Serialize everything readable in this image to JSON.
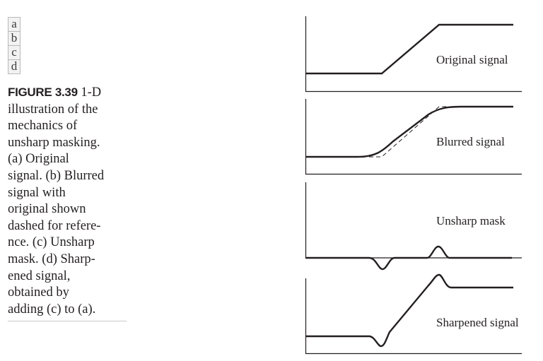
{
  "figure": {
    "panel_letters": [
      "a",
      "b",
      "c",
      "d"
    ],
    "caption_label": "FIGURE 3.39",
    "caption_lines": [
      " 1-D",
      "illustration of the",
      "mechanics of",
      "unsharp masking.",
      "(a) Original",
      "signal. (b) Blurred",
      "signal with",
      "original shown",
      "dashed for refere-",
      "nce. (c) Unsharp",
      "mask. (d) Sharp-",
      "ened signal,",
      "obtained by",
      "adding (c) to (a)."
    ]
  },
  "panels": {
    "original": {
      "label": "Original signal"
    },
    "blurred": {
      "label": "Blurred signal"
    },
    "mask": {
      "label": "Unsharp mask"
    },
    "sharpened": {
      "label": "Sharpened signal"
    }
  },
  "colors": {
    "ink": "#231f20",
    "axis": "#231f20",
    "frame": "#b9b9b9"
  }
}
